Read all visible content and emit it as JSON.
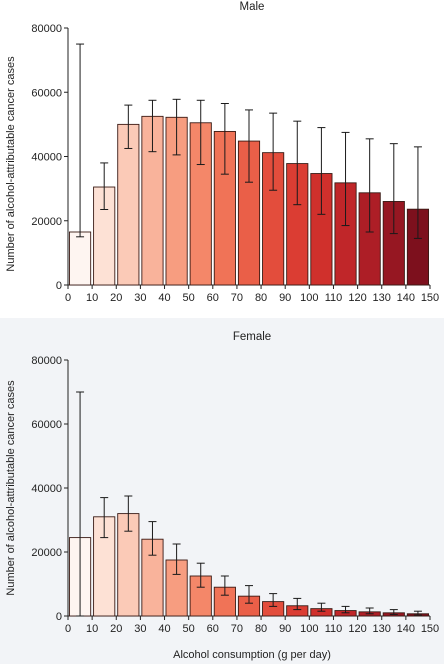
{
  "charts": {
    "male": {
      "title": "Male",
      "ylabel": "Number of alcohol-attributable cancer cases"
    },
    "female": {
      "title": "Female",
      "ylabel": "Number of alcohol-attributable cancer cases",
      "xlabel": "Alcohol consumption (g per day)"
    }
  },
  "chart_data": [
    {
      "type": "bar",
      "title": "Male",
      "xlabel": "",
      "ylabel": "Number of alcohol-attributable cancer cases",
      "x_ticks": [
        0,
        10,
        20,
        30,
        40,
        50,
        60,
        70,
        80,
        90,
        100,
        110,
        120,
        130,
        140,
        150
      ],
      "y_ticks": [
        0,
        20000,
        40000,
        60000,
        80000
      ],
      "xlim": [
        0,
        150
      ],
      "ylim": [
        0,
        80000
      ],
      "bin_width": 10,
      "bins_start": [
        0,
        10,
        20,
        30,
        40,
        50,
        60,
        70,
        80,
        90,
        100,
        110,
        120,
        130,
        140
      ],
      "values": [
        16500,
        30500,
        50000,
        52500,
        52200,
        50500,
        47800,
        44800,
        41200,
        37800,
        34700,
        31800,
        28700,
        26000,
        23600
      ],
      "error_low": [
        15000,
        23500,
        42500,
        41500,
        40500,
        37500,
        34500,
        32000,
        29500,
        25000,
        22000,
        18500,
        16500,
        16000,
        14500
      ],
      "error_high": [
        75000,
        38000,
        56000,
        57500,
        57800,
        57500,
        56500,
        54500,
        53500,
        51000,
        49000,
        47500,
        45500,
        44000,
        43000
      ],
      "colors": [
        "#fef5f1",
        "#fde1d5",
        "#fbcab7",
        "#f9b39b",
        "#f79d80",
        "#f48769",
        "#f07357",
        "#ea5f48",
        "#e34d3c",
        "#db3d33",
        "#d0302c",
        "#c02629",
        "#ad1e26",
        "#961722",
        "#7d101d"
      ]
    },
    {
      "type": "bar",
      "title": "Female",
      "xlabel": "Alcohol consumption (g per day)",
      "ylabel": "Number of alcohol-attributable cancer cases",
      "x_ticks": [
        0,
        10,
        20,
        30,
        40,
        50,
        60,
        70,
        80,
        90,
        100,
        110,
        120,
        130,
        140,
        150
      ],
      "y_ticks": [
        0,
        20000,
        40000,
        60000,
        80000
      ],
      "xlim": [
        0,
        150
      ],
      "ylim": [
        0,
        80000
      ],
      "bin_width": 10,
      "bins_start": [
        0,
        10,
        20,
        30,
        40,
        50,
        60,
        70,
        80,
        90,
        100,
        110,
        120,
        130,
        140
      ],
      "values": [
        24500,
        31000,
        32000,
        24000,
        17500,
        12500,
        9000,
        6200,
        4500,
        3200,
        2300,
        1700,
        1300,
        1000,
        700
      ],
      "error_low": [
        0,
        24500,
        26500,
        19000,
        13000,
        9000,
        6500,
        4000,
        3000,
        2000,
        1500,
        1000,
        700,
        500,
        300
      ],
      "error_high": [
        70000,
        37000,
        37500,
        29500,
        22500,
        16500,
        12500,
        9500,
        7000,
        5500,
        4000,
        3000,
        2500,
        2000,
        1500
      ],
      "colors": [
        "#fef5f1",
        "#fde1d5",
        "#fbcab7",
        "#f9b39b",
        "#f79d80",
        "#f48769",
        "#f07357",
        "#ea5f48",
        "#e34d3c",
        "#db3d33",
        "#d0302c",
        "#c02629",
        "#ad1e26",
        "#961722",
        "#7d101d"
      ]
    }
  ]
}
